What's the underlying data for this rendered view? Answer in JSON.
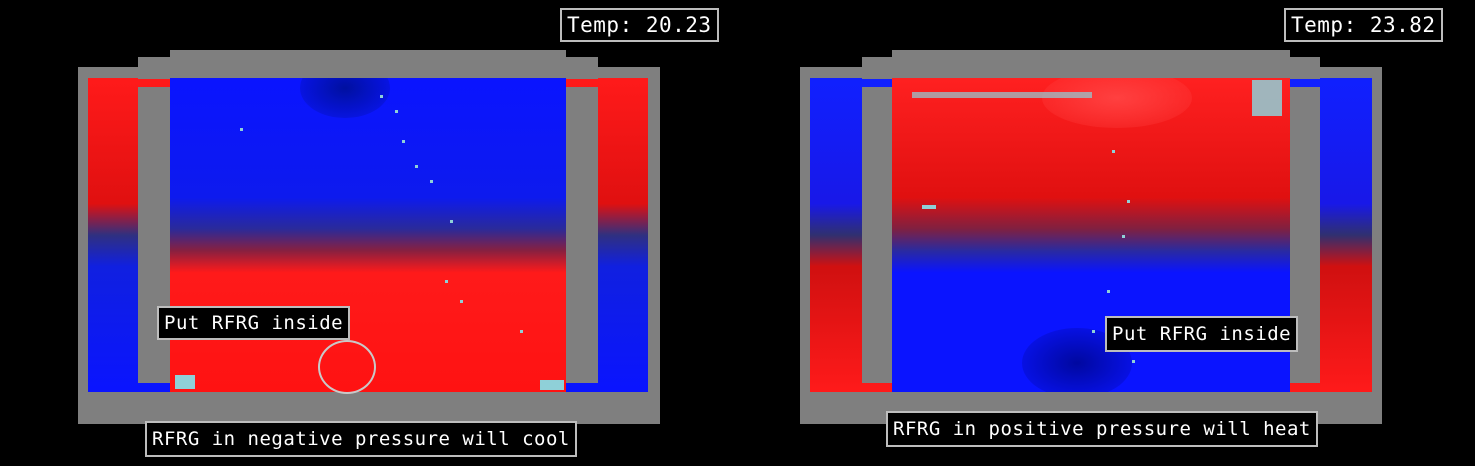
{
  "colors": {
    "background": "#000000",
    "wall": "#7f7f7f",
    "cold": "#0a14ff",
    "hot": "#ff1212",
    "speck": "#8fd0d8",
    "label_border": "#bdbdbd"
  },
  "left_sim": {
    "temp_label": "Temp: 20.23",
    "tool_label": "Put RFRG inside",
    "caption": "RFRG in negative pressure will cool"
  },
  "right_sim": {
    "temp_label": "Temp: 23.82",
    "tool_label": "Put RFRG inside",
    "caption": "RFRG in positive pressure will heat"
  }
}
